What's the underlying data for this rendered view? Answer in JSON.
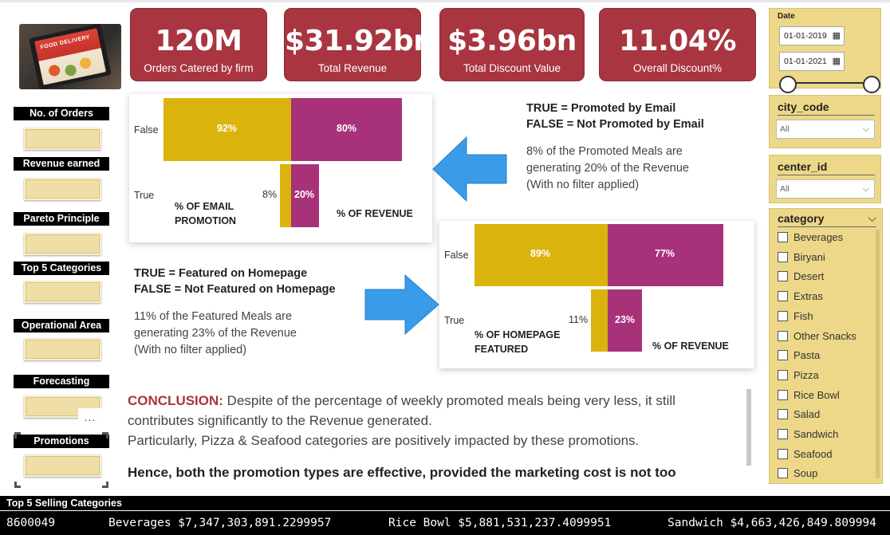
{
  "kpis": [
    {
      "value": "120M",
      "label": "Orders Catered by firm"
    },
    {
      "value": "$31.92bn",
      "label": "Total Revenue"
    },
    {
      "value": "$3.96bn",
      "label": "Total Discount Value"
    },
    {
      "value": "11.04%",
      "label": "Overall Discount%"
    }
  ],
  "logo": {
    "text": "FOOD DELIVERY"
  },
  "nav": [
    {
      "label": "No. of Orders"
    },
    {
      "label": "Revenue earned"
    },
    {
      "label": "Pareto Principle"
    },
    {
      "label": "Top 5 Categories"
    },
    {
      "label": "Operational Area"
    },
    {
      "label": "Forecasting"
    },
    {
      "label": "Promotions"
    }
  ],
  "more_options": "...",
  "chart_data": [
    {
      "type": "bar",
      "categories": [
        "False",
        "True"
      ],
      "series": [
        {
          "name": "% OF EMAIL PROMOTION",
          "values": [
            92,
            8
          ],
          "color": "#dbb30d"
        },
        {
          "name": "% OF REVENUE",
          "values": [
            80,
            20
          ],
          "color": "#a8327a"
        }
      ],
      "labels": {
        "false_left": "92%",
        "false_right": "80%",
        "true_left": "8%",
        "true_right": "20%"
      },
      "left_caption": [
        "% OF EMAIL",
        "PROMOTION"
      ],
      "right_caption": "% OF REVENUE"
    },
    {
      "type": "bar",
      "categories": [
        "False",
        "True"
      ],
      "series": [
        {
          "name": "% OF HOMEPAGE FEATURED",
          "values": [
            89,
            11
          ],
          "color": "#dbb30d"
        },
        {
          "name": "% OF REVENUE",
          "values": [
            77,
            23
          ],
          "color": "#a8327a"
        }
      ],
      "labels": {
        "false_left": "89%",
        "false_right": "77%",
        "true_left": "11%",
        "true_right": "23%"
      },
      "left_caption": [
        "% OF HOMEPAGE",
        "FEATURED"
      ],
      "right_caption": "% OF REVENUE"
    }
  ],
  "email_note": {
    "line1": "TRUE = Promoted by Email",
    "line2": "FALSE = Not Promoted by Email",
    "body": [
      "8% of the Promoted Meals are",
      "generating 20% of the Revenue",
      "(With no filter applied)"
    ]
  },
  "homepage_note": {
    "line1": "TRUE = Featured on Homepage",
    "line2": "FALSE = Not Featured on Homepage",
    "body": [
      "11% of the Featured Meals are",
      "generating 23% of the Revenue",
      "(With no filter applied)"
    ]
  },
  "conclusion": {
    "heading": "CONCLUSION:",
    "text1": " Despite of the percentage of weekly promoted meals being very less, it still contributes significantly to the Revenue generated.",
    "text2": "Particularly, Pizza & Seafood categories are positively impacted by these promotions.",
    "text3": "Hence, both the promotion types are effective, provided the marketing cost is not too"
  },
  "filters": {
    "date": {
      "title": "Date",
      "start": "01-01-2019",
      "end": "01-01-2021"
    },
    "city_code": {
      "title": "city_code",
      "selected": "All"
    },
    "center_id": {
      "title": "center_id",
      "selected": "All"
    },
    "category": {
      "title": "category",
      "items": [
        "Beverages",
        "Biryani",
        "Desert",
        "Extras",
        "Fish",
        "Other Snacks",
        "Pasta",
        "Pizza",
        "Rice Bowl",
        "Salad",
        "Sandwich",
        "Seafood",
        "Soup"
      ]
    }
  },
  "ticker": {
    "title": "Top 5 Selling Categories",
    "items": [
      "8600049",
      "Beverages $7,347,303,891.2299957",
      "Rice Bowl $5,881,531,237.4099951",
      "Sandwich $4,663,426,849.809994"
    ]
  }
}
